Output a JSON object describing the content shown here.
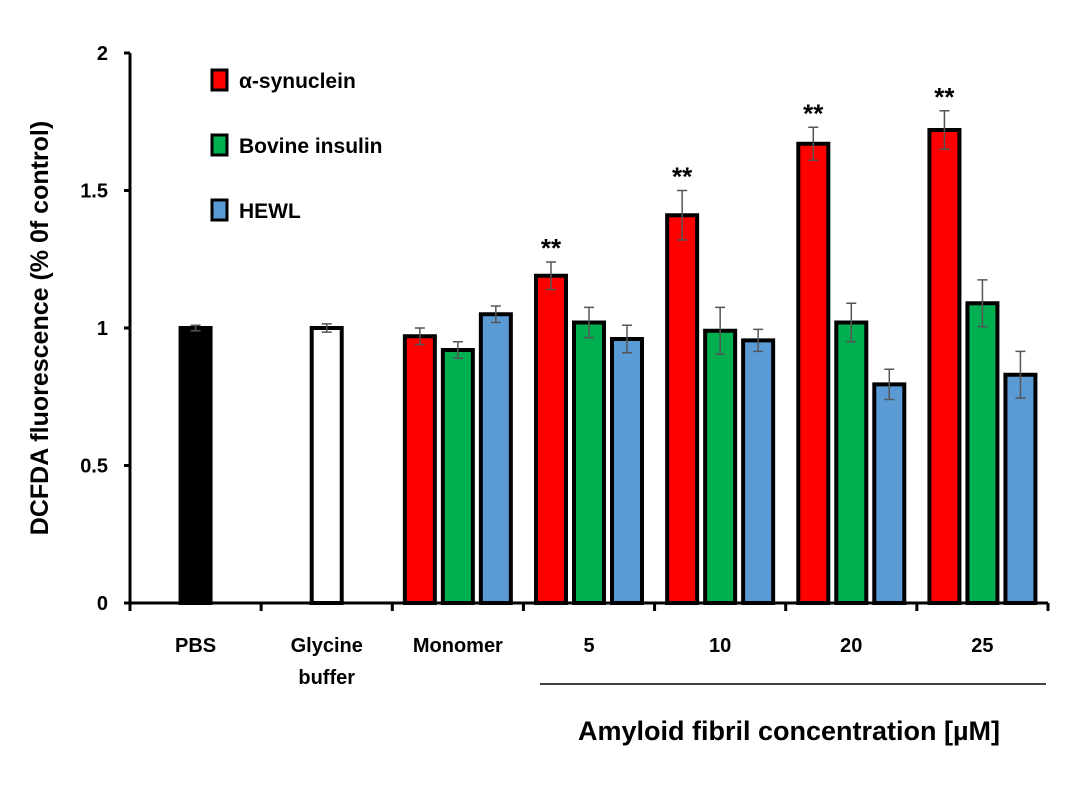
{
  "chart_data": {
    "type": "bar",
    "title": "",
    "ylabel": "DCFDA fluorescence (% 0f control)",
    "xlabel": "Amyloid fibril concentration [µM]",
    "ylim": [
      0,
      2
    ],
    "yticks": [
      "0",
      "0.5",
      "1",
      "1.5",
      "2"
    ],
    "ytick_values": [
      0,
      0.5,
      1,
      1.5,
      2
    ],
    "grid": false,
    "legend_position": "top-left",
    "significance_marker": "**",
    "categories": [
      {
        "label_lines": [
          "PBS"
        ],
        "bars": [
          {
            "series": "PBS",
            "value": 1.0,
            "err": 0.01
          }
        ]
      },
      {
        "label_lines": [
          "Glycine",
          "buffer"
        ],
        "bars": [
          {
            "series": "Glycine buffer",
            "value": 1.0,
            "err": 0.015
          }
        ]
      },
      {
        "label_lines": [
          "Monomer"
        ],
        "bars": [
          {
            "series": "α-synuclein",
            "value": 0.97,
            "err": 0.03
          },
          {
            "series": "Bovine insulin",
            "value": 0.92,
            "err": 0.03
          },
          {
            "series": "HEWL",
            "value": 1.05,
            "err": 0.03
          }
        ]
      },
      {
        "label_lines": [
          "5"
        ],
        "bars": [
          {
            "series": "α-synuclein",
            "value": 1.19,
            "err": 0.05,
            "sig": true
          },
          {
            "series": "Bovine insulin",
            "value": 1.02,
            "err": 0.055
          },
          {
            "series": "HEWL",
            "value": 0.96,
            "err": 0.05
          }
        ]
      },
      {
        "label_lines": [
          "10"
        ],
        "bars": [
          {
            "series": "α-synuclein",
            "value": 1.41,
            "err": 0.09,
            "sig": true
          },
          {
            "series": "Bovine insulin",
            "value": 0.99,
            "err": 0.085
          },
          {
            "series": "HEWL",
            "value": 0.955,
            "err": 0.04
          }
        ]
      },
      {
        "label_lines": [
          "20"
        ],
        "bars": [
          {
            "series": "α-synuclein",
            "value": 1.67,
            "err": 0.06,
            "sig": true
          },
          {
            "series": "Bovine insulin",
            "value": 1.02,
            "err": 0.07
          },
          {
            "series": "HEWL",
            "value": 0.795,
            "err": 0.055
          }
        ]
      },
      {
        "label_lines": [
          "25"
        ],
        "bars": [
          {
            "series": "α-synuclein",
            "value": 1.72,
            "err": 0.07,
            "sig": true
          },
          {
            "series": "Bovine insulin",
            "value": 1.09,
            "err": 0.085
          },
          {
            "series": "HEWL",
            "value": 0.83,
            "err": 0.085
          }
        ]
      }
    ],
    "concentration_group": [
      "5",
      "10",
      "20",
      "25"
    ],
    "series_colors": {
      "PBS": "#000000",
      "Glycine buffer": "#ffffff",
      "α-synuclein": "#ff0000",
      "Bovine insulin": "#00b050",
      "HEWL": "#5b9bd5"
    },
    "legend": [
      {
        "name": "α-synuclein",
        "color": "#ff0000"
      },
      {
        "name": "Bovine insulin",
        "color": "#00b050"
      },
      {
        "name": "HEWL",
        "color": "#5b9bd5"
      }
    ]
  }
}
